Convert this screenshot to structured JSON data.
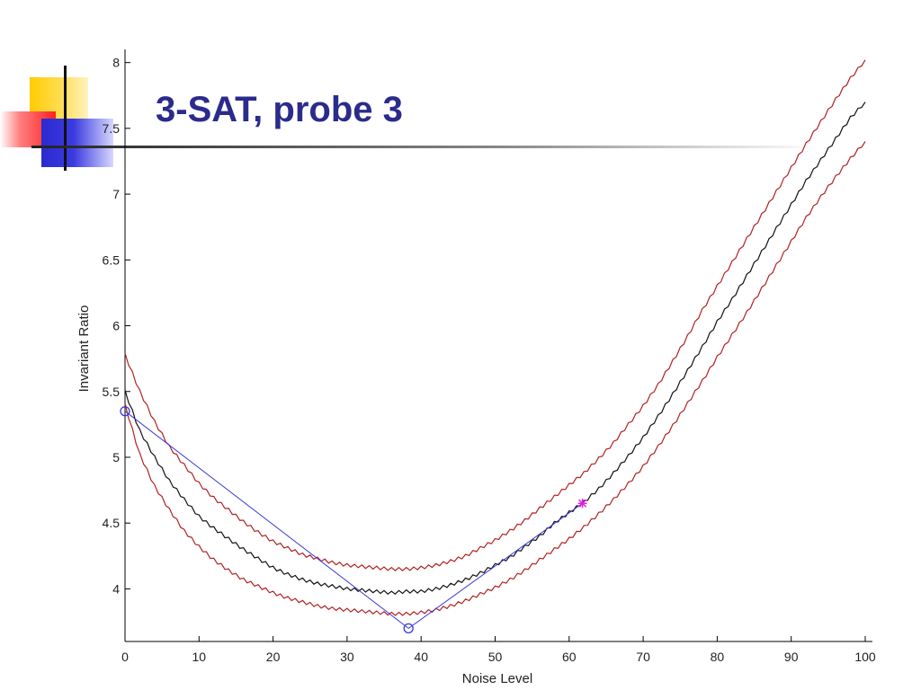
{
  "slide": {
    "title": "3-SAT, probe 3",
    "accent_colors": [
      "#ffcc00",
      "#ff2020",
      "#2a2ad0",
      "#2b2b8c"
    ]
  },
  "chart_data": {
    "type": "line",
    "title": "3-SAT, probe 3",
    "xlabel": "Noise Level",
    "ylabel": "Invariant Ratio",
    "xlim": [
      0,
      100
    ],
    "ylim": [
      3.6,
      8.1
    ],
    "xticks": [
      0,
      10,
      20,
      30,
      40,
      50,
      60,
      70,
      80,
      90,
      100
    ],
    "yticks": [
      4,
      4.5,
      5,
      5.5,
      6,
      6.5,
      7,
      7.5,
      8
    ],
    "grid": false,
    "legend": "none",
    "series": [
      {
        "role": "mean",
        "color": "#111111",
        "x": [
          0,
          2,
          4,
          6,
          8,
          10,
          12,
          14,
          16,
          18,
          20,
          22,
          24,
          26,
          28,
          30,
          32,
          34,
          36,
          38,
          40,
          42,
          44,
          46,
          48,
          50,
          52,
          54,
          56,
          58,
          60,
          62,
          64,
          66,
          68,
          70,
          72,
          74,
          76,
          78,
          80,
          82,
          84,
          86,
          88,
          90,
          92,
          94,
          96,
          98,
          100
        ],
        "y": [
          5.5,
          5.2,
          5.0,
          4.82,
          4.68,
          4.55,
          4.46,
          4.38,
          4.3,
          4.23,
          4.16,
          4.11,
          4.07,
          4.04,
          4.02,
          4.0,
          3.99,
          3.98,
          3.97,
          3.98,
          3.98,
          4.0,
          4.03,
          4.07,
          4.12,
          4.18,
          4.24,
          4.32,
          4.4,
          4.5,
          4.58,
          4.66,
          4.76,
          4.88,
          5.01,
          5.15,
          5.31,
          5.48,
          5.66,
          5.84,
          6.03,
          6.2,
          6.38,
          6.56,
          6.74,
          6.92,
          7.1,
          7.26,
          7.42,
          7.58,
          7.7
        ]
      },
      {
        "role": "upper",
        "color": "#b22222",
        "x": [
          0,
          2,
          4,
          6,
          8,
          10,
          12,
          14,
          16,
          18,
          20,
          22,
          24,
          26,
          28,
          30,
          32,
          34,
          36,
          38,
          40,
          42,
          44,
          46,
          48,
          50,
          52,
          54,
          56,
          58,
          60,
          62,
          64,
          66,
          68,
          70,
          72,
          74,
          76,
          78,
          80,
          82,
          84,
          86,
          88,
          90,
          92,
          94,
          96,
          98,
          100
        ],
        "y": [
          5.78,
          5.5,
          5.27,
          5.08,
          4.94,
          4.8,
          4.69,
          4.6,
          4.51,
          4.43,
          4.36,
          4.31,
          4.26,
          4.23,
          4.2,
          4.18,
          4.17,
          4.16,
          4.15,
          4.15,
          4.16,
          4.18,
          4.21,
          4.25,
          4.31,
          4.37,
          4.44,
          4.52,
          4.61,
          4.7,
          4.79,
          4.88,
          4.99,
          5.11,
          5.25,
          5.39,
          5.55,
          5.73,
          5.92,
          6.12,
          6.3,
          6.48,
          6.66,
          6.84,
          7.02,
          7.2,
          7.38,
          7.55,
          7.72,
          7.88,
          8.02
        ]
      },
      {
        "role": "lower",
        "color": "#b22222",
        "x": [
          0,
          2,
          4,
          6,
          8,
          10,
          12,
          14,
          16,
          18,
          20,
          22,
          24,
          26,
          28,
          30,
          32,
          34,
          36,
          38,
          40,
          42,
          44,
          46,
          48,
          50,
          52,
          54,
          56,
          58,
          60,
          62,
          64,
          66,
          68,
          70,
          72,
          74,
          76,
          78,
          80,
          82,
          84,
          86,
          88,
          90,
          92,
          94,
          96,
          98,
          100
        ],
        "y": [
          5.4,
          5.02,
          4.78,
          4.6,
          4.44,
          4.32,
          4.22,
          4.14,
          4.07,
          4.02,
          3.97,
          3.93,
          3.9,
          3.87,
          3.85,
          3.84,
          3.83,
          3.82,
          3.81,
          3.81,
          3.82,
          3.84,
          3.87,
          3.91,
          3.96,
          4.01,
          4.07,
          4.14,
          4.22,
          4.3,
          4.38,
          4.47,
          4.57,
          4.68,
          4.8,
          4.93,
          5.08,
          5.24,
          5.41,
          5.58,
          5.76,
          5.93,
          6.1,
          6.28,
          6.46,
          6.64,
          6.82,
          6.98,
          7.13,
          7.27,
          7.4
        ]
      },
      {
        "role": "fit",
        "color": "#3a3ad8",
        "x": [
          0,
          38.3,
          61.8
        ],
        "y": [
          5.35,
          3.7,
          4.65
        ],
        "point_markers": [
          "circle",
          "circle",
          "none"
        ]
      }
    ],
    "highlight_point": {
      "x": 61.8,
      "y": 4.65,
      "marker": "star",
      "color": "#e020e0"
    }
  }
}
